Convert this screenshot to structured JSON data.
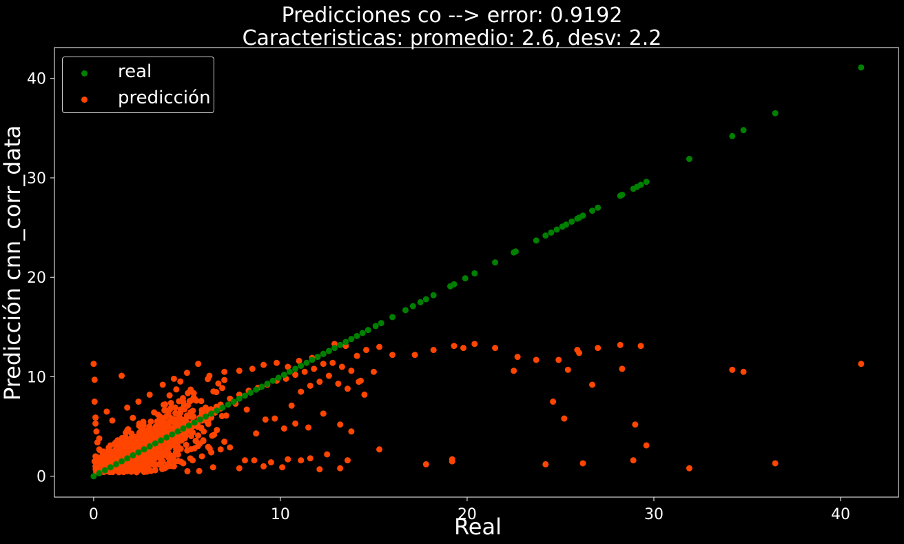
{
  "chart_data": {
    "type": "scatter",
    "title_lines": [
      "Predicciones co --> error: 0.9192",
      "Caracteristicas: promedio: 2.6, desv: 2.2"
    ],
    "xlabel": "Real",
    "ylabel": "Predicción cnn_corr_data",
    "xlim": [
      -2.1,
      43.1
    ],
    "ylim": [
      -2.1,
      43.1
    ],
    "xticks": [
      0,
      10,
      20,
      30,
      40
    ],
    "yticks": [
      0,
      10,
      20,
      30,
      40
    ],
    "x_tick_labels": [
      "0",
      "10",
      "20",
      "30",
      "40"
    ],
    "y_tick_labels": [
      "0",
      "10",
      "20",
      "30",
      "40"
    ],
    "grid": false,
    "legend_position": "top-left",
    "background_color": "#000000",
    "series": [
      {
        "name": "real",
        "color": "#008000",
        "points": [
          [
            0,
            0
          ],
          [
            0.3,
            0.3
          ],
          [
            0.6,
            0.6
          ],
          [
            0.9,
            0.9
          ],
          [
            1.2,
            1.2
          ],
          [
            1.5,
            1.5
          ],
          [
            1.8,
            1.8
          ],
          [
            2.1,
            2.1
          ],
          [
            2.4,
            2.4
          ],
          [
            2.7,
            2.7
          ],
          [
            3,
            3
          ],
          [
            3.3,
            3.3
          ],
          [
            3.6,
            3.6
          ],
          [
            3.9,
            3.9
          ],
          [
            4.2,
            4.2
          ],
          [
            4.5,
            4.5
          ],
          [
            4.8,
            4.8
          ],
          [
            5.1,
            5.1
          ],
          [
            5.4,
            5.4
          ],
          [
            5.7,
            5.7
          ],
          [
            6,
            6
          ],
          [
            6.3,
            6.3
          ],
          [
            6.6,
            6.6
          ],
          [
            6.9,
            6.9
          ],
          [
            7.2,
            7.2
          ],
          [
            7.5,
            7.5
          ],
          [
            7.8,
            7.8
          ],
          [
            8.1,
            8.1
          ],
          [
            8.4,
            8.4
          ],
          [
            8.7,
            8.7
          ],
          [
            9,
            9
          ],
          [
            9.3,
            9.3
          ],
          [
            9.6,
            9.6
          ],
          [
            9.9,
            9.9
          ],
          [
            10.2,
            10.2
          ],
          [
            10.5,
            10.5
          ],
          [
            10.8,
            10.8
          ],
          [
            11.1,
            11.1
          ],
          [
            11.4,
            11.4
          ],
          [
            11.7,
            11.7
          ],
          [
            12,
            12
          ],
          [
            12.3,
            12.3
          ],
          [
            12.6,
            12.6
          ],
          [
            12.9,
            12.9
          ],
          [
            13.2,
            13.2
          ],
          [
            13.5,
            13.5
          ],
          [
            13.8,
            13.8
          ],
          [
            14.1,
            14.1
          ],
          [
            14.4,
            14.4
          ],
          [
            14.7,
            14.7
          ],
          [
            15.1,
            15.1
          ],
          [
            15.4,
            15.4
          ],
          [
            16,
            16
          ],
          [
            16.7,
            16.7
          ],
          [
            17.1,
            17.1
          ],
          [
            17.5,
            17.5
          ],
          [
            17.8,
            17.8
          ],
          [
            18.2,
            18.2
          ],
          [
            19.1,
            19.1
          ],
          [
            19.3,
            19.3
          ],
          [
            19.9,
            19.9
          ],
          [
            20.4,
            20.4
          ],
          [
            21.5,
            21.5
          ],
          [
            22.5,
            22.5
          ],
          [
            22.6,
            22.6
          ],
          [
            23.7,
            23.7
          ],
          [
            24.2,
            24.2
          ],
          [
            24.5,
            24.5
          ],
          [
            24.8,
            24.8
          ],
          [
            25.1,
            25.1
          ],
          [
            25.3,
            25.3
          ],
          [
            25.6,
            25.6
          ],
          [
            25.9,
            25.9
          ],
          [
            26,
            26
          ],
          [
            26.2,
            26.2
          ],
          [
            26.7,
            26.7
          ],
          [
            27,
            27
          ],
          [
            28.2,
            28.2
          ],
          [
            28.3,
            28.3
          ],
          [
            28.9,
            28.9
          ],
          [
            29.1,
            29.1
          ],
          [
            29.3,
            29.3
          ],
          [
            29.6,
            29.6
          ],
          [
            31.9,
            31.9
          ],
          [
            34.2,
            34.2
          ],
          [
            34.8,
            34.8
          ],
          [
            36.5,
            36.5
          ],
          [
            41.1,
            41.1
          ]
        ]
      },
      {
        "name": "predicción",
        "color": "#ff4500",
        "points": [
          [
            0,
            11.3
          ],
          [
            0.05,
            9.7
          ],
          [
            0.1,
            5.3
          ],
          [
            0.05,
            7.5
          ],
          [
            0.1,
            5.9
          ],
          [
            0.2,
            3.4
          ],
          [
            0.15,
            4.5
          ],
          [
            0.3,
            2.7
          ],
          [
            0.1,
            2.0
          ],
          [
            0.05,
            1.5
          ],
          [
            0.1,
            1.0
          ],
          [
            0.2,
            0.9
          ],
          [
            0.4,
            1.4
          ],
          [
            0.5,
            2.3
          ],
          [
            0.3,
            3.8
          ],
          [
            0.7,
            6.5
          ],
          [
            1.5,
            10.1
          ],
          [
            0.9,
            3.1
          ],
          [
            1.0,
            5.6
          ],
          [
            1.2,
            0.6
          ],
          [
            1.8,
            0.5
          ],
          [
            2.3,
            0.4
          ],
          [
            2.8,
            0.5
          ],
          [
            3.3,
            0.6
          ],
          [
            3.8,
            0.8
          ],
          [
            4.3,
            1.0
          ],
          [
            4.8,
            1.3
          ],
          [
            5.3,
            1.6
          ],
          [
            5.8,
            2.0
          ],
          [
            6.3,
            2.4
          ],
          [
            6.8,
            2.7
          ],
          [
            7.3,
            2.9
          ],
          [
            7.8,
            0.8
          ],
          [
            8.1,
            1.6
          ],
          [
            8.6,
            1.6
          ],
          [
            9.1,
            1.0
          ],
          [
            9.5,
            1.4
          ],
          [
            10.1,
            0.9
          ],
          [
            10.4,
            1.7
          ],
          [
            11.1,
            1.6
          ],
          [
            11.6,
            1.8
          ],
          [
            12.1,
            0.7
          ],
          [
            12.5,
            2.2
          ],
          [
            13.2,
            0.8
          ],
          [
            13.6,
            1.6
          ],
          [
            15.3,
            2.7
          ],
          [
            1.8,
            6.9
          ],
          [
            2.4,
            7.5
          ],
          [
            3.0,
            8.2
          ],
          [
            3.7,
            9.2
          ],
          [
            4.3,
            9.8
          ],
          [
            5.0,
            10.4
          ],
          [
            5.6,
            11.3
          ],
          [
            6.2,
            10.1
          ],
          [
            7.0,
            10.5
          ],
          [
            7.8,
            10.6
          ],
          [
            8.5,
            10.8
          ],
          [
            9.1,
            11.2
          ],
          [
            9.8,
            11.4
          ],
          [
            10.4,
            11.0
          ],
          [
            11.0,
            11.6
          ],
          [
            11.7,
            11.9
          ],
          [
            12.3,
            12.3
          ],
          [
            12.9,
            13.3
          ],
          [
            13.5,
            13.1
          ],
          [
            14.1,
            12.1
          ],
          [
            14.6,
            12.7
          ],
          [
            15.3,
            13.0
          ],
          [
            16.0,
            12.2
          ],
          [
            17.2,
            12.2
          ],
          [
            18.2,
            12.7
          ],
          [
            19.3,
            13.1
          ],
          [
            19.8,
            12.9
          ],
          [
            20.4,
            13.3
          ],
          [
            21.5,
            12.9
          ],
          [
            22.5,
            10.6
          ],
          [
            22.7,
            12.0
          ],
          [
            23.7,
            11.7
          ],
          [
            24.6,
            7.5
          ],
          [
            24.9,
            11.7
          ],
          [
            25.2,
            5.8
          ],
          [
            25.4,
            10.7
          ],
          [
            25.9,
            12.7
          ],
          [
            26.0,
            12.4
          ],
          [
            26.2,
            1.3
          ],
          [
            26.7,
            9.2
          ],
          [
            27.0,
            12.9
          ],
          [
            28.2,
            13.2
          ],
          [
            28.3,
            10.8
          ],
          [
            28.9,
            1.6
          ],
          [
            29.0,
            5.2
          ],
          [
            29.3,
            13.1
          ],
          [
            29.6,
            3.1
          ],
          [
            31.9,
            0.8
          ],
          [
            34.2,
            10.7
          ],
          [
            34.8,
            10.5
          ],
          [
            36.5,
            1.3
          ],
          [
            41.1,
            11.3
          ],
          [
            24.2,
            1.2
          ],
          [
            19.2,
            1.7
          ],
          [
            19.2,
            1.5
          ],
          [
            17.8,
            1.2
          ],
          [
            13.8,
            4.5
          ],
          [
            14.2,
            9.5
          ],
          [
            14.5,
            8.2
          ],
          [
            13.2,
            5.2
          ],
          [
            12.3,
            6.3
          ],
          [
            11.5,
            4.9
          ],
          [
            10.8,
            5.3
          ],
          [
            10.2,
            4.8
          ],
          [
            9.7,
            5.8
          ],
          [
            9.2,
            5.7
          ],
          [
            8.7,
            4.3
          ],
          [
            8.2,
            6.7
          ],
          [
            7.6,
            7.3
          ],
          [
            7.1,
            6.1
          ],
          [
            6.5,
            6.4
          ],
          [
            6.0,
            6.9
          ],
          [
            5.5,
            7.6
          ],
          [
            5.0,
            6.1
          ],
          [
            4.5,
            5.3
          ],
          [
            4.0,
            5.1
          ],
          [
            3.5,
            4.6
          ],
          [
            3.0,
            4.3
          ],
          [
            2.5,
            3.8
          ],
          [
            2.0,
            3.3
          ],
          [
            1.5,
            2.9
          ],
          [
            1.0,
            2.4
          ],
          [
            0.6,
            2.0
          ],
          [
            1.3,
            1.8
          ],
          [
            1.8,
            2.2
          ],
          [
            2.3,
            2.7
          ],
          [
            2.8,
            3.0
          ],
          [
            3.3,
            3.5
          ],
          [
            3.8,
            3.9
          ],
          [
            4.3,
            4.4
          ],
          [
            4.8,
            4.7
          ],
          [
            5.3,
            5.0
          ],
          [
            5.8,
            5.6
          ],
          [
            6.3,
            5.9
          ],
          [
            6.8,
            7.2
          ],
          [
            7.3,
            7.8
          ],
          [
            7.8,
            8.2
          ],
          [
            8.3,
            8.6
          ],
          [
            8.8,
            8.9
          ],
          [
            9.3,
            9.2
          ],
          [
            9.8,
            9.6
          ],
          [
            10.3,
            9.8
          ],
          [
            10.8,
            10.2
          ],
          [
            11.3,
            10.5
          ],
          [
            11.8,
            10.8
          ],
          [
            12.3,
            11.3
          ],
          [
            12.8,
            11.4
          ],
          [
            13.3,
            11.0
          ],
          [
            13.8,
            10.6
          ],
          [
            14.3,
            9.6
          ],
          [
            15.0,
            10.5
          ],
          [
            10.6,
            7.1
          ],
          [
            11.1,
            8.5
          ],
          [
            11.6,
            9.1
          ],
          [
            12.1,
            9.5
          ],
          [
            12.6,
            10.1
          ],
          [
            13.1,
            9.3
          ],
          [
            13.6,
            8.8
          ]
        ],
        "dense_cloud": {
          "x_range": [
            0.1,
            7.0
          ],
          "approx_count": 900,
          "note": "dense cluster around the diagonal"
        }
      }
    ]
  }
}
